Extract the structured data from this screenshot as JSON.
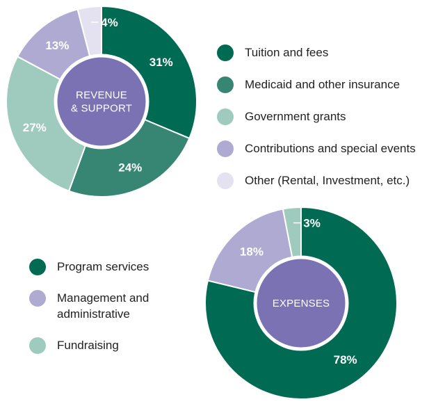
{
  "chart_data": [
    {
      "type": "pie",
      "title": "REVENUE & SUPPORT",
      "title_lines": [
        "REVENUE",
        "& SUPPORT"
      ],
      "legend_position": "right",
      "slices": [
        {
          "label": "Tuition and fees",
          "value": 31,
          "value_label": "31%",
          "color": "#006a52"
        },
        {
          "label": "Medicaid and other insurance",
          "value": 24,
          "value_label": "24%",
          "color": "#368673"
        },
        {
          "label": "Government grants",
          "value": 27,
          "value_label": "27%",
          "color": "#9fcbbf"
        },
        {
          "label": "Contributions and special events",
          "value": 13,
          "value_label": "13%",
          "color": "#aeaad2"
        },
        {
          "label": "Other (Rental, Investment, etc.)",
          "value": 4,
          "value_label": "4%",
          "color": "#e4e2f0"
        }
      ],
      "center_color": "#7b72b4"
    },
    {
      "type": "pie",
      "title": "EXPENSES",
      "title_lines": [
        "EXPENSES"
      ],
      "legend_position": "left",
      "slices": [
        {
          "label": "Program services",
          "value": 78,
          "value_label": "78%",
          "color": "#006a52"
        },
        {
          "label": "Management and administrative",
          "value": 18,
          "value_label": "18%",
          "color": "#aeaad2"
        },
        {
          "label": "Fundraising",
          "value": 3,
          "value_label": "3%",
          "color": "#9fcbbf"
        }
      ],
      "center_color": "#7b72b4"
    }
  ]
}
